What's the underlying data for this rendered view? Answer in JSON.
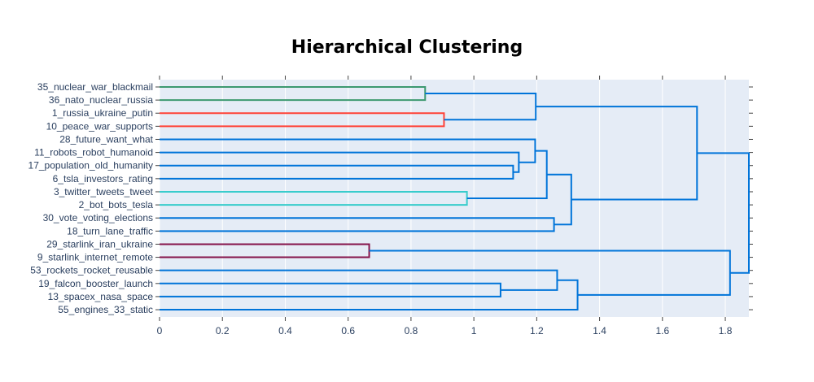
{
  "chart_data": {
    "type": "dendrogram",
    "title": "Hierarchical Clustering",
    "orientation": "horizontal",
    "xlim": [
      0,
      1.875
    ],
    "xticks": [
      0,
      0.2,
      0.4,
      0.6,
      0.8,
      1,
      1.2,
      1.4,
      1.6,
      1.8
    ],
    "xtick_labels": [
      "0",
      "0.2",
      "0.4",
      "0.6",
      "0.8",
      "1",
      "1.2",
      "1.4",
      "1.6",
      "1.8"
    ],
    "grid": true,
    "leaves": [
      "35_nuclear_war_blackmail",
      "36_nato_nuclear_russia",
      "1_russia_ukraine_putin",
      "10_peace_war_supports",
      "28_future_want_what",
      "11_robots_robot_humanoid",
      "17_population_old_humanity",
      "6_tsla_investors_rating",
      "3_twitter_tweets_tweet",
      "2_bot_bots_tesla",
      "30_vote_voting_elections",
      "18_turn_lane_traffic",
      "29_starlink_iran_ukraine",
      "9_starlink_internet_remote",
      "53_rockets_rocket_reusable",
      "19_falcon_booster_launch",
      "13_spacex_nasa_space",
      "55_engines_33_static"
    ],
    "links": [
      {
        "a": 0,
        "b": 1,
        "height": 0.845,
        "color": "#3d9970"
      },
      {
        "a": 2,
        "b": 3,
        "height": 0.905,
        "color": "#ff4136"
      },
      {
        "a": 8,
        "b": 9,
        "height": 0.978,
        "color": "#39cccc"
      },
      {
        "a": 12,
        "b": 13,
        "height": 0.667,
        "color": "#85144b"
      },
      {
        "a": 6,
        "b": 7,
        "height": 1.125,
        "color": "#0074d9"
      },
      {
        "a": 5,
        "b": "m4",
        "height": 1.143,
        "color": "#0074d9"
      },
      {
        "a": 4,
        "b": "m5",
        "height": 1.195,
        "color": "#0074d9"
      },
      {
        "a": "m6",
        "b": "m2",
        "height": 1.232,
        "color": "#0074d9"
      },
      {
        "a": 10,
        "b": 11,
        "height": 1.255,
        "color": "#0074d9"
      },
      {
        "a": "m7",
        "b": "m8",
        "height": 1.31,
        "color": "#0074d9"
      },
      {
        "a": "m0",
        "b": "m1",
        "height": 1.197,
        "color": "#0074d9"
      },
      {
        "a": "m10",
        "b": "m9",
        "height": 1.71,
        "color": "#0074d9"
      },
      {
        "a": 15,
        "b": 16,
        "height": 1.085,
        "color": "#0074d9"
      },
      {
        "a": 14,
        "b": "m12",
        "height": 1.265,
        "color": "#0074d9"
      },
      {
        "a": "m13",
        "b": 17,
        "height": 1.33,
        "color": "#0074d9"
      },
      {
        "a": "m3",
        "b": "m14",
        "height": 1.815,
        "color": "#0074d9"
      },
      {
        "a": "m11",
        "b": "m15",
        "height": 1.875,
        "color": "#0074d9"
      }
    ]
  }
}
